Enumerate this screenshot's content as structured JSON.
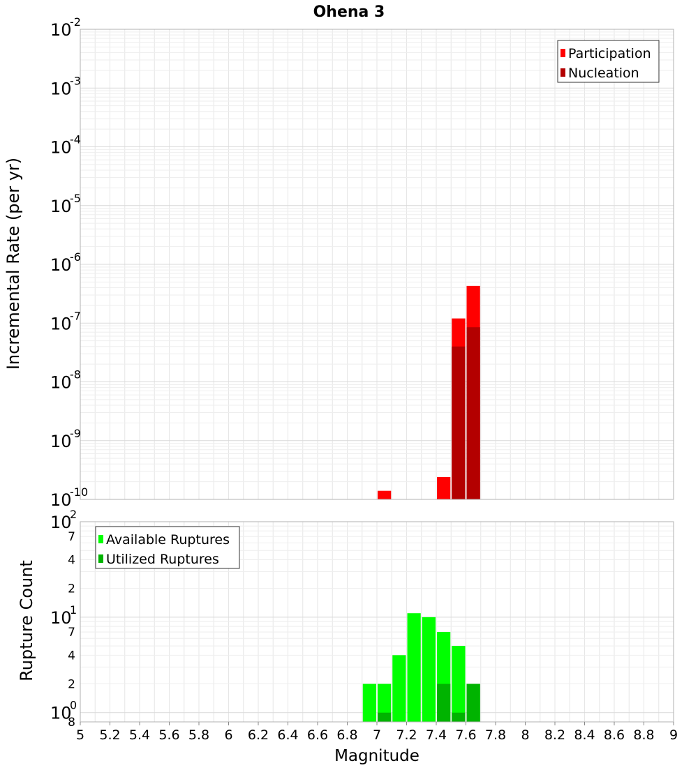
{
  "chart_data": [
    {
      "type": "bar",
      "title": "Ohena 3",
      "xlabel": "",
      "ylabel": "Incremental Rate (per yr)",
      "y_scale": "log",
      "ylim": [
        1e-10,
        0.01
      ],
      "xlim": [
        5,
        9
      ],
      "grid": true,
      "legend_position": "top-right",
      "y_tick_labels": [
        {
          "value": 1e-10,
          "base": "10",
          "exp": "-10"
        },
        {
          "value": 1e-09,
          "base": "10",
          "exp": "-9"
        },
        {
          "value": 1e-08,
          "base": "10",
          "exp": "-8"
        },
        {
          "value": 1e-07,
          "base": "10",
          "exp": "-7"
        },
        {
          "value": 1e-06,
          "base": "10",
          "exp": "-6"
        },
        {
          "value": 1e-05,
          "base": "10",
          "exp": "-5"
        },
        {
          "value": 0.0001,
          "base": "10",
          "exp": "-4"
        },
        {
          "value": 0.001,
          "base": "10",
          "exp": "-3"
        },
        {
          "value": 0.01,
          "base": "10",
          "exp": "-2"
        }
      ],
      "bar_width": 0.1,
      "series": [
        {
          "name": "Participation",
          "color": "#ff0000",
          "points": [
            {
              "x": 7.05,
              "y": 1.4e-10
            },
            {
              "x": 7.45,
              "y": 2.4e-10
            },
            {
              "x": 7.55,
              "y": 1.2e-07
            },
            {
              "x": 7.65,
              "y": 4.3e-07
            }
          ]
        },
        {
          "name": "Nucleation",
          "color": "#b30000",
          "points": [
            {
              "x": 7.55,
              "y": 4e-08
            },
            {
              "x": 7.65,
              "y": 8.5e-08
            }
          ]
        }
      ]
    },
    {
      "type": "bar",
      "title": "",
      "xlabel": "Magnitude",
      "ylabel": "Rupture Count",
      "y_scale": "log",
      "ylim": [
        0.8,
        100
      ],
      "xlim": [
        5,
        9
      ],
      "grid": true,
      "legend_position": "top-left",
      "x_ticks": [
        "5",
        "5.2",
        "5.4",
        "5.6",
        "5.8",
        "6",
        "6.2",
        "6.4",
        "6.6",
        "6.8",
        "7",
        "7.2",
        "7.4",
        "7.6",
        "7.8",
        "8",
        "8.2",
        "8.4",
        "8.6",
        "8.8",
        "9"
      ],
      "y_major_ticks": [
        {
          "value": 1,
          "base": "10",
          "exp": "0"
        },
        {
          "value": 10,
          "base": "10",
          "exp": "1"
        },
        {
          "value": 100,
          "base": "10",
          "exp": "2"
        }
      ],
      "y_minor_ticks": [
        {
          "value": 0.8,
          "label": "8"
        },
        {
          "value": 2,
          "label": "2"
        },
        {
          "value": 4,
          "label": "4"
        },
        {
          "value": 7,
          "label": "7"
        },
        {
          "value": 20,
          "label": "2"
        },
        {
          "value": 40,
          "label": "4"
        },
        {
          "value": 70,
          "label": "7"
        }
      ],
      "bar_width": 0.1,
      "series": [
        {
          "name": "Available Ruptures",
          "color": "#00ff00",
          "points": [
            {
              "x": 6.95,
              "y": 2
            },
            {
              "x": 7.05,
              "y": 2
            },
            {
              "x": 7.15,
              "y": 4
            },
            {
              "x": 7.25,
              "y": 11
            },
            {
              "x": 7.35,
              "y": 10
            },
            {
              "x": 7.45,
              "y": 7
            },
            {
              "x": 7.55,
              "y": 5
            },
            {
              "x": 7.65,
              "y": 2
            }
          ]
        },
        {
          "name": "Utilized Ruptures",
          "color": "#00b300",
          "points": [
            {
              "x": 7.05,
              "y": 1
            },
            {
              "x": 7.45,
              "y": 2
            },
            {
              "x": 7.55,
              "y": 1
            },
            {
              "x": 7.65,
              "y": 2
            }
          ]
        }
      ]
    }
  ]
}
